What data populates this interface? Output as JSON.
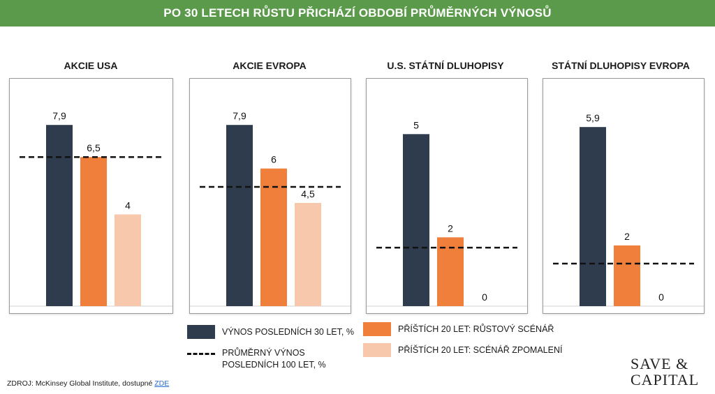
{
  "header": {
    "title": "PO 30 LETECH RŮSTU PŘICHÁZÍ OBDOBÍ PRŮMĚRNÝCH VÝNOSŮ"
  },
  "colors": {
    "dark": "#2f3c4d",
    "orange": "#f07f3c",
    "peach": "#f8c8ac",
    "title_bg": "#5a9a4a"
  },
  "chart_data": [
    {
      "type": "bar",
      "title": "AKCIE USA",
      "categories": [
        "VÝNOS POSLEDNÍCH 30 LET, %",
        "PŘÍŠTÍCH 20 LET: RŮSTOVÝ SCÉNÁŘ",
        "PŘÍŠTÍCH 20 LET: SCÉNÁŘ ZPOMALENÍ"
      ],
      "values": [
        7.9,
        6.5,
        4
      ],
      "labels": [
        "7,9",
        "6,5",
        "4"
      ],
      "avg_100y": 6.5,
      "ylim": [
        0,
        9
      ]
    },
    {
      "type": "bar",
      "title": "AKCIE EVROPA",
      "categories": [
        "VÝNOS POSLEDNÍCH 30 LET, %",
        "PŘÍŠTÍCH 20 LET: RŮSTOVÝ SCÉNÁŘ",
        "PŘÍŠTÍCH 20 LET: SCÉNÁŘ ZPOMALENÍ"
      ],
      "values": [
        7.9,
        6,
        4.5
      ],
      "labels": [
        "7,9",
        "6",
        "4,5"
      ],
      "avg_100y": 5.2,
      "ylim": [
        0,
        9
      ]
    },
    {
      "type": "bar",
      "title": "U.S. STÁTNÍ DLUHOPISY",
      "categories": [
        "VÝNOS POSLEDNÍCH 30 LET, %",
        "PŘÍŠTÍCH 20 LET: RŮSTOVÝ SCÉNÁŘ",
        "PŘÍŠTÍCH 20 LET: SCÉNÁŘ ZPOMALENÍ"
      ],
      "values": [
        5,
        2,
        0
      ],
      "labels": [
        "5",
        "2",
        "0"
      ],
      "avg_100y": 1.7,
      "ylim": [
        0,
        6
      ]
    },
    {
      "type": "bar",
      "title": "STÁTNÍ DLUHOPISY EVROPA",
      "categories": [
        "VÝNOS POSLEDNÍCH 30 LET, %",
        "PŘÍŠTÍCH 20 LET: RŮSTOVÝ SCÉNÁŘ",
        "PŘÍŠTÍCH 20 LET: SCÉNÁŘ ZPOMALENÍ"
      ],
      "values": [
        5.9,
        2,
        0
      ],
      "labels": [
        "5,9",
        "2",
        "0"
      ],
      "avg_100y": 1.4,
      "ylim": [
        0,
        6.8
      ]
    }
  ],
  "legend": {
    "dark": "VÝNOS POSLEDNÍCH 30 LET, %",
    "dash_line1": "PRŮMĚRNÝ VÝNOS",
    "dash_line2": "POSLEDNÍCH 100 LET, %",
    "orange": "PŘÍŠTÍCH 20 LET: RŮSTOVÝ SCÉNÁŘ",
    "peach": "PŘÍŠTÍCH 20 LET: SCÉNÁŘ ZPOMALENÍ"
  },
  "source": {
    "prefix": "ZDROJ: McKinsey Global Institute, dostupné ",
    "link": "ZDE"
  },
  "logo": {
    "line1": "SAVE &",
    "line2": "CAPITAL"
  }
}
